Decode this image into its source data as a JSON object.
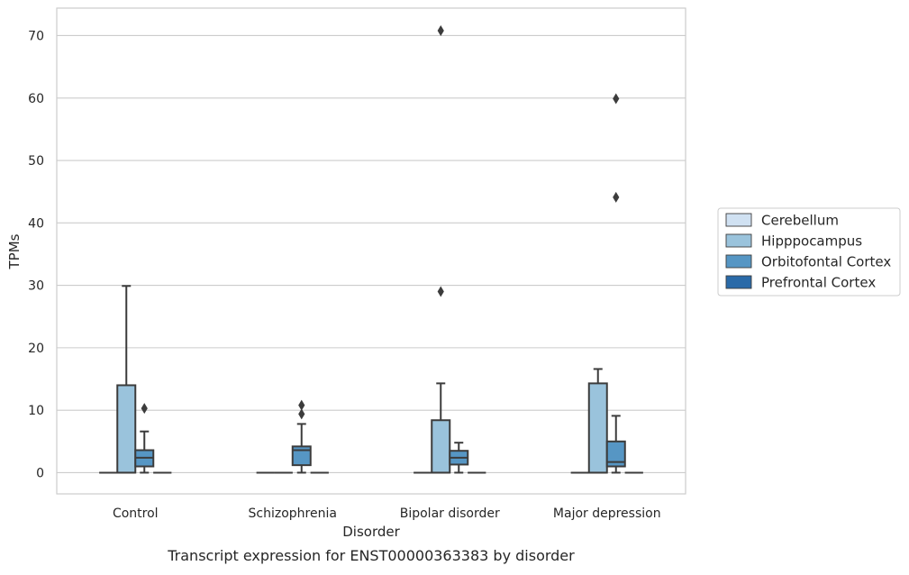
{
  "chart_data": {
    "type": "box",
    "caption": "Transcript expression for ENST00000363383 by disorder",
    "xlabel": "Disorder",
    "ylabel": "TPMs",
    "ylim": [
      -3.4,
      74.4
    ],
    "yticks": [
      0,
      10,
      20,
      30,
      40,
      50,
      60,
      70
    ],
    "grid": "horizontal",
    "legend_placement": "right",
    "categories": [
      "Control",
      "Schizophrenia",
      "Bipolar disorder",
      "Major depression"
    ],
    "series": [
      {
        "name": "Cerebellum",
        "color": "#d0e1f2",
        "boxes": [
          {
            "q1": 0,
            "median": 0,
            "q3": 0,
            "whisker_low": 0,
            "whisker_high": 0,
            "outliers": []
          },
          {
            "q1": 0,
            "median": 0,
            "q3": 0,
            "whisker_low": 0,
            "whisker_high": 0,
            "outliers": []
          },
          {
            "q1": 0,
            "median": 0,
            "q3": 0,
            "whisker_low": 0,
            "whisker_high": 0,
            "outliers": []
          },
          {
            "q1": 0,
            "median": 0,
            "q3": 0,
            "whisker_low": 0,
            "whisker_high": 0,
            "outliers": []
          }
        ]
      },
      {
        "name": "Hipppocampus",
        "color": "#9ac3dc",
        "boxes": [
          {
            "q1": 0,
            "median": 0,
            "q3": 14.0,
            "whisker_low": 0,
            "whisker_high": 29.9,
            "outliers": []
          },
          {
            "q1": 0,
            "median": 0,
            "q3": 0,
            "whisker_low": 0,
            "whisker_high": 0,
            "outliers": []
          },
          {
            "q1": 0,
            "median": 0,
            "q3": 8.4,
            "whisker_low": 0,
            "whisker_high": 14.3,
            "outliers": [
              29.0,
              70.8
            ]
          },
          {
            "q1": 0,
            "median": 0,
            "q3": 14.3,
            "whisker_low": 0,
            "whisker_high": 16.6,
            "outliers": []
          }
        ]
      },
      {
        "name": "Orbitofontal Cortex",
        "color": "#5696c4",
        "boxes": [
          {
            "q1": 1.0,
            "median": 2.4,
            "q3": 3.6,
            "whisker_low": 0,
            "whisker_high": 6.6,
            "outliers": [
              10.3
            ]
          },
          {
            "q1": 1.2,
            "median": 3.6,
            "q3": 4.2,
            "whisker_low": 0,
            "whisker_high": 7.8,
            "outliers": [
              9.4,
              10.8
            ]
          },
          {
            "q1": 1.3,
            "median": 2.4,
            "q3": 3.5,
            "whisker_low": 0,
            "whisker_high": 4.8,
            "outliers": []
          },
          {
            "q1": 1.0,
            "median": 1.7,
            "q3": 5.0,
            "whisker_low": 0,
            "whisker_high": 9.1,
            "outliers": [
              44.1,
              59.9
            ]
          }
        ]
      },
      {
        "name": "Prefrontal Cortex",
        "color": "#2a6aa8",
        "boxes": [
          {
            "q1": 0,
            "median": 0,
            "q3": 0,
            "whisker_low": 0,
            "whisker_high": 0,
            "outliers": []
          },
          {
            "q1": 0,
            "median": 0,
            "q3": 0,
            "whisker_low": 0,
            "whisker_high": 0,
            "outliers": []
          },
          {
            "q1": 0,
            "median": 0,
            "q3": 0,
            "whisker_low": 0,
            "whisker_high": 0,
            "outliers": []
          },
          {
            "q1": 0,
            "median": 0,
            "q3": 0,
            "whisker_low": 0,
            "whisker_high": 0,
            "outliers": []
          }
        ]
      }
    ]
  }
}
